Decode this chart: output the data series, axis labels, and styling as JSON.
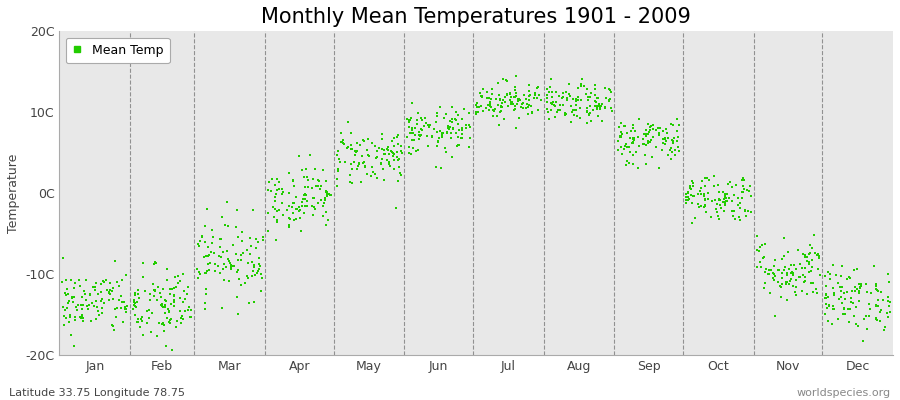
{
  "title": "Monthly Mean Temperatures 1901 - 2009",
  "ylabel": "Temperature",
  "xlabel_bottom_left": "Latitude 33.75 Longitude 78.75",
  "xlabel_bottom_right": "worldspecies.org",
  "legend_label": "Mean Temp",
  "dot_color": "#22cc00",
  "bg_color": "#e8e8e8",
  "ylim": [
    -20,
    20
  ],
  "ytick_labels": [
    "-20C",
    "-10C",
    "0C",
    "10C",
    "20C"
  ],
  "ytick_values": [
    -20,
    -10,
    0,
    10,
    20
  ],
  "months": [
    "Jan",
    "Feb",
    "Mar",
    "Apr",
    "May",
    "Jun",
    "Jul",
    "Aug",
    "Sep",
    "Oct",
    "Nov",
    "Dec"
  ],
  "month_means": [
    -13.5,
    -14.0,
    -8.0,
    -0.5,
    4.5,
    7.5,
    11.5,
    11.0,
    6.5,
    -0.5,
    -9.5,
    -13.0
  ],
  "month_stds": [
    2.0,
    2.5,
    2.5,
    2.0,
    1.8,
    1.5,
    1.2,
    1.2,
    1.5,
    1.5,
    2.0,
    2.0
  ],
  "n_years": 109,
  "dot_size": 2,
  "title_fontsize": 15,
  "label_fontsize": 9,
  "tick_fontsize": 9
}
